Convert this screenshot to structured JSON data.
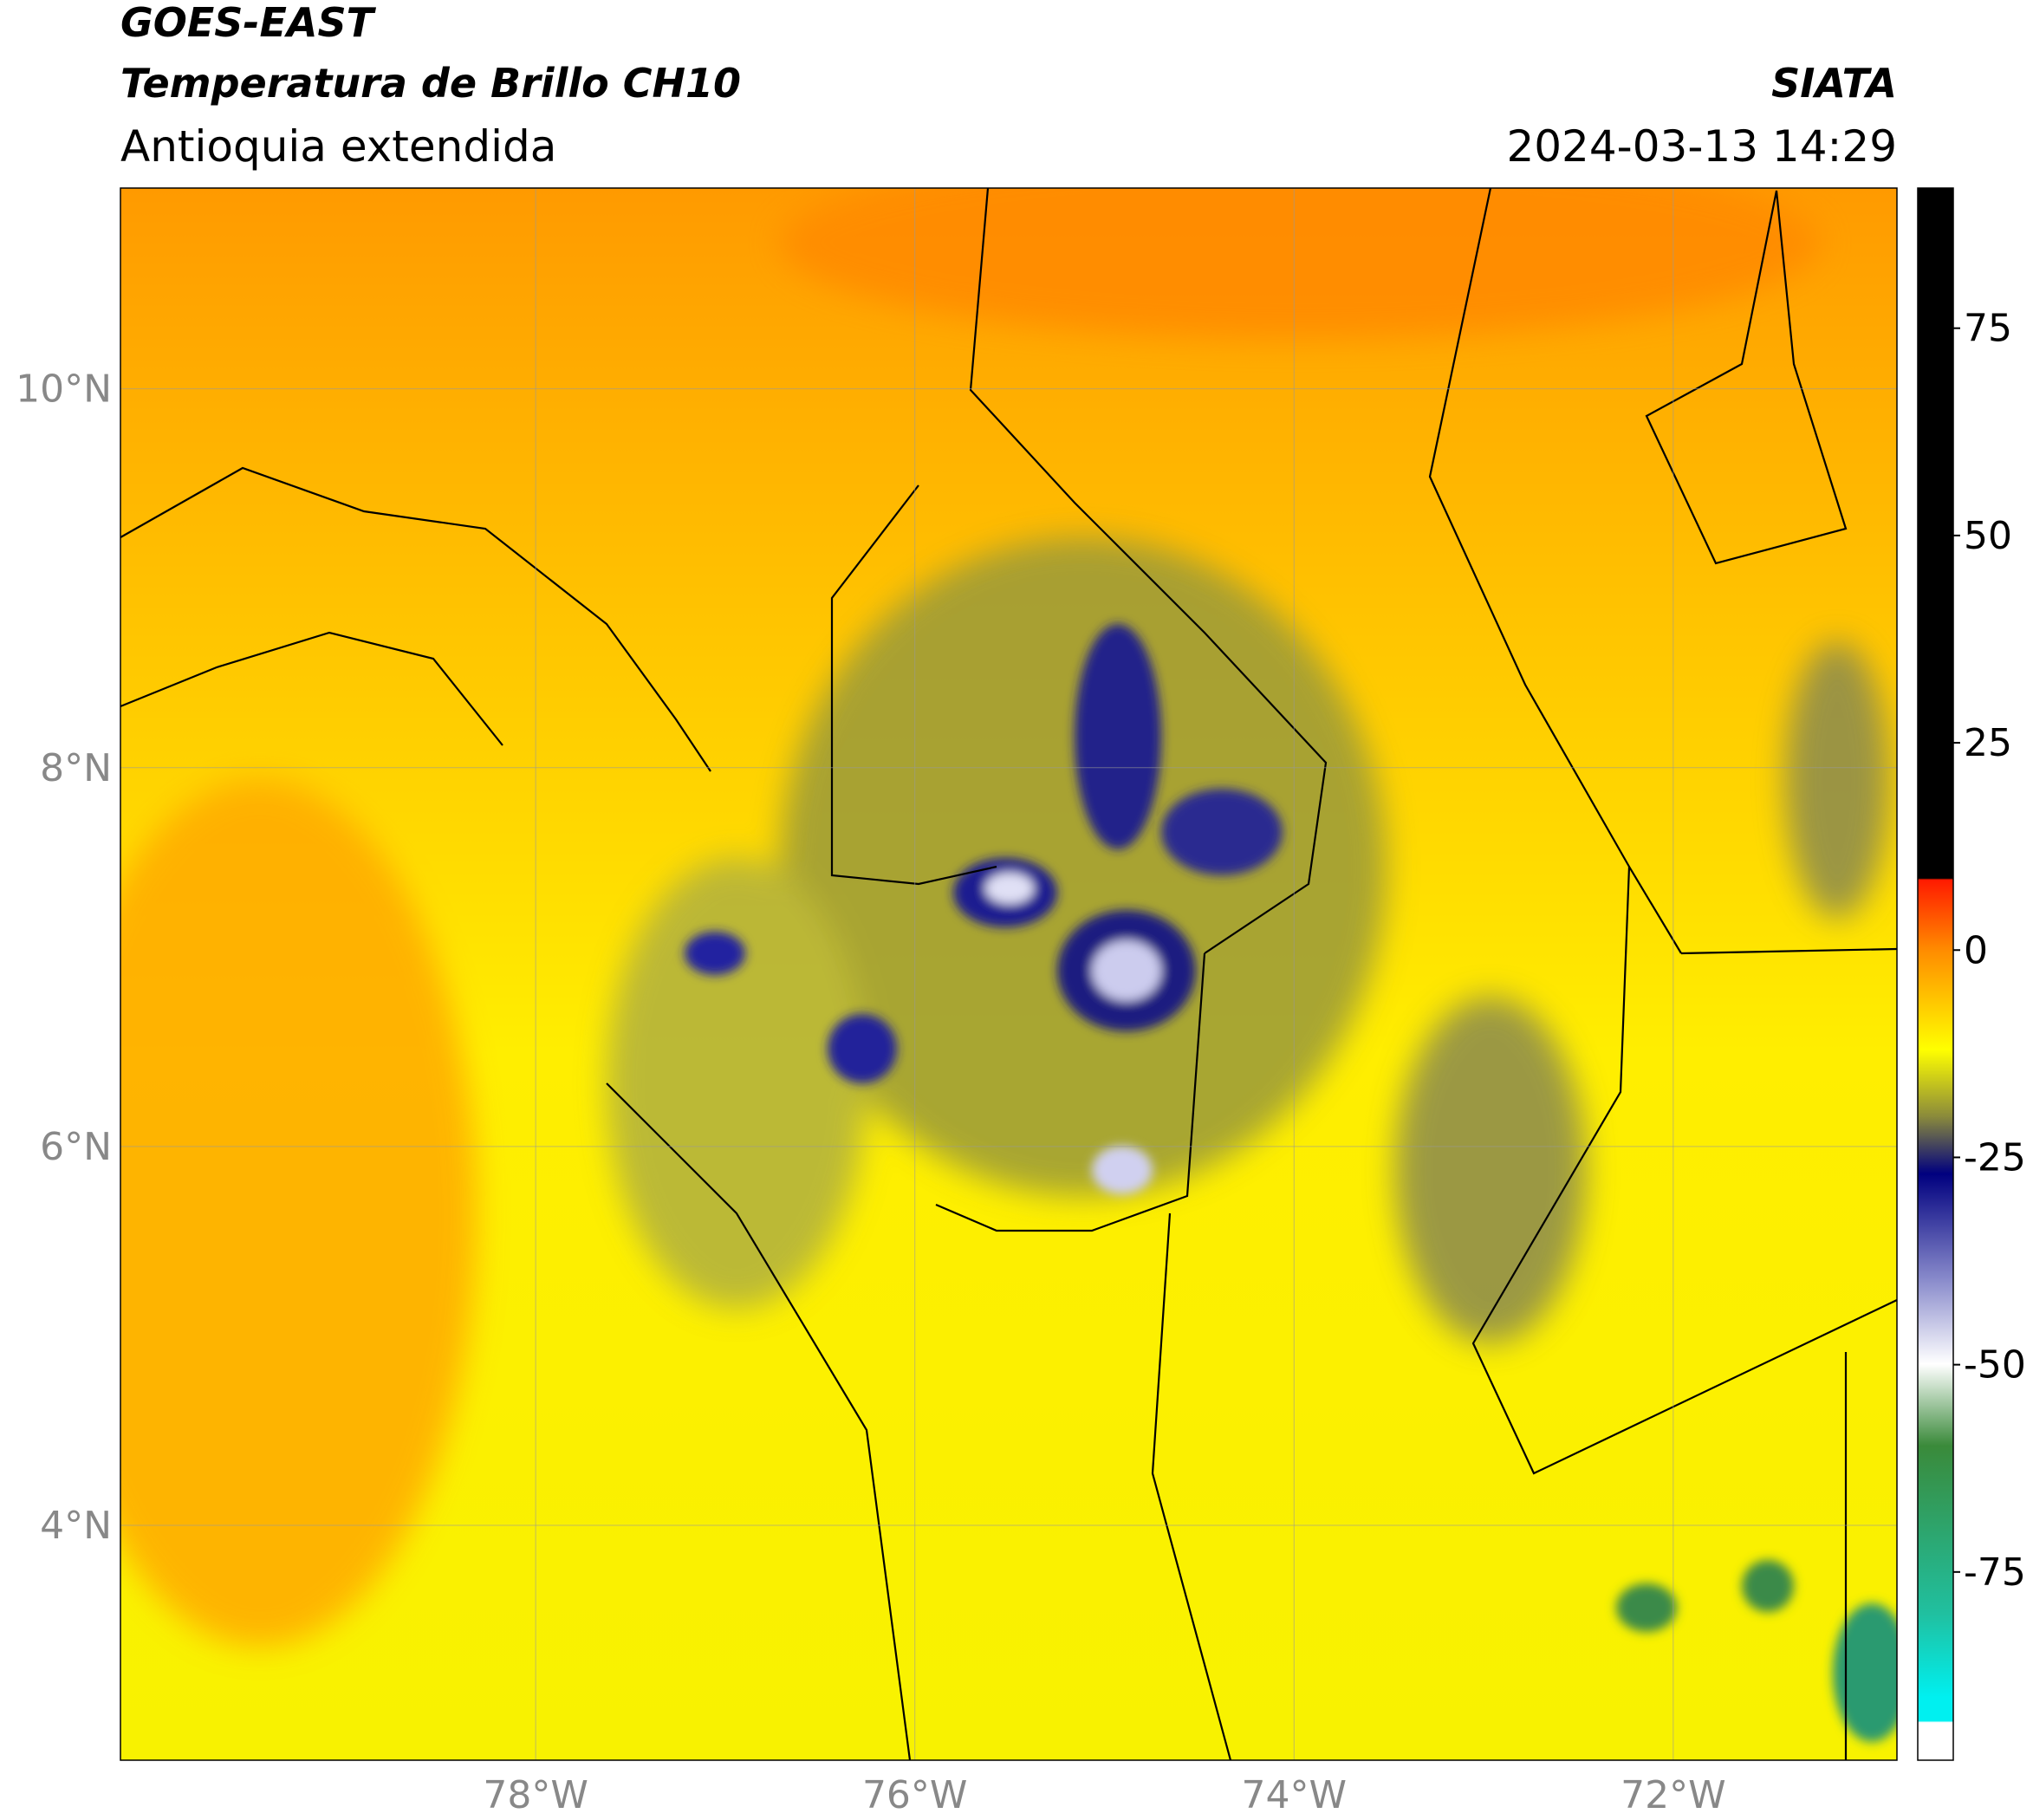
{
  "header": {
    "title": "GOES-EAST",
    "subtitle": "Temperatura de Brillo CH10",
    "region": "Antioquia extendida",
    "source": "SIATA",
    "timestamp": "2024-03-13 14:29"
  },
  "map": {
    "xlim": [
      -80.19,
      -70.82
    ],
    "ylim": [
      2.76,
      11.06
    ],
    "xticks": [
      {
        "value": -78,
        "label": "78°W"
      },
      {
        "value": -76,
        "label": "76°W"
      },
      {
        "value": -74,
        "label": "74°W"
      },
      {
        "value": -72,
        "label": "72°W"
      }
    ],
    "yticks": [
      {
        "value": 10,
        "label": "10°N"
      },
      {
        "value": 8,
        "label": "8°N"
      },
      {
        "value": 6,
        "label": "6°N"
      },
      {
        "value": 4,
        "label": "4°N"
      }
    ],
    "grid": true
  },
  "colorbar": {
    "lim": [
      -97.7,
      91.9
    ],
    "ticks": [
      75,
      50,
      25,
      0,
      -25,
      -50,
      -75
    ]
  }
}
